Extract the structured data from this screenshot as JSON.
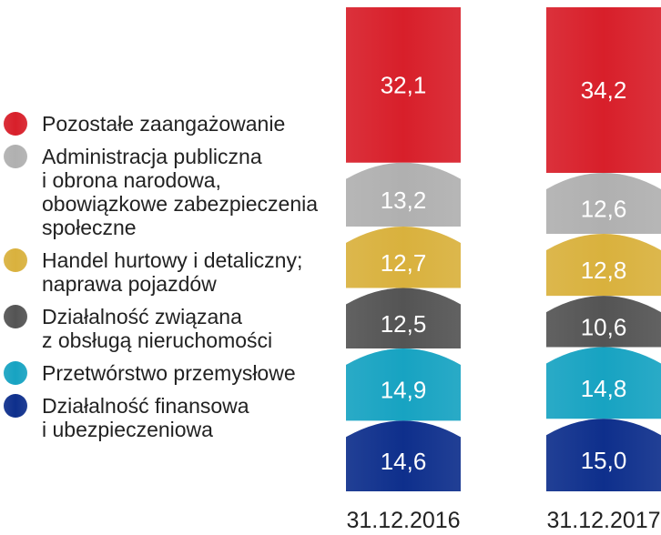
{
  "chart_data": {
    "type": "bar",
    "stacked": true,
    "normalized_percent": true,
    "categories": [
      "31.12.2016",
      "31.12.2017"
    ],
    "series": [
      {
        "name": "Działalność finansowa i ubezpieczeniowa",
        "legend_lines": [
          "Działalność finansowa",
          "i ubezpieczeniowa"
        ],
        "color": "#0e2f8c",
        "values": [
          14.6,
          15.0
        ],
        "labels": [
          "14,6",
          "15,0"
        ]
      },
      {
        "name": "Przetwórstwo przemysłowe",
        "legend_lines": [
          "Przetwórstwo przemysłowe"
        ],
        "color": "#17a3c2",
        "values": [
          14.9,
          14.8
        ],
        "labels": [
          "14,9",
          "14,8"
        ]
      },
      {
        "name": "Działalność związana z obsługą nieruchomości",
        "legend_lines": [
          "Działalność związana",
          "z obsługą nieruchomości"
        ],
        "color": "#545454",
        "values": [
          12.5,
          10.6
        ],
        "labels": [
          "12,5",
          "10,6"
        ]
      },
      {
        "name": "Handel hurtowy i detaliczny; naprawa pojazdów",
        "legend_lines": [
          "Handel hurtowy i detaliczny;",
          "naprawa pojazdów"
        ],
        "color": "#d9b13d",
        "values": [
          12.7,
          12.8
        ],
        "labels": [
          "12,7",
          "12,8"
        ]
      },
      {
        "name": "Administracja publiczna i obrona narodowa, obowiązkowe zabezpieczenia społeczne",
        "legend_lines": [
          "Administracja publiczna",
          "i obrona narodowa,",
          "obowiązkowe zabezpieczenia",
          "społeczne"
        ],
        "color": "#b0b0b0",
        "values": [
          13.2,
          12.6
        ],
        "labels": [
          "13,2",
          "12,6"
        ]
      },
      {
        "name": "Pozostałe zaangażowanie",
        "legend_lines": [
          "Pozostałe zaangażowanie"
        ],
        "color": "#d81f2a",
        "values": [
          32.1,
          34.2
        ],
        "labels": [
          "32,1",
          "34,2"
        ]
      }
    ],
    "legend_position": "left",
    "legend_order": [
      5,
      4,
      3,
      2,
      1,
      0
    ],
    "grid": false
  }
}
